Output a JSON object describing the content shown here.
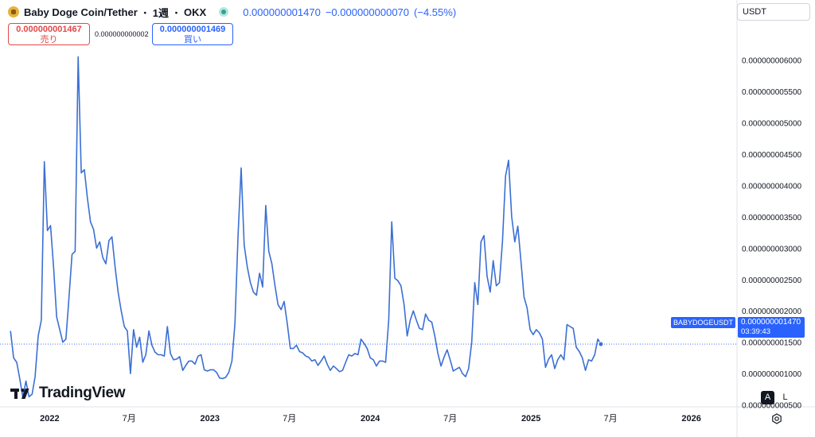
{
  "header": {
    "title": "Baby Doge Coin/Tether",
    "interval": "1週",
    "exchange": "OKX",
    "price": "0.000000001470",
    "change": "−0.000000000070",
    "change_pct": "(−4.55%)"
  },
  "trade": {
    "sell_price": "0.000000001467",
    "sell_label": "売り",
    "spread": "0.000000000002",
    "buy_price": "0.000000001469",
    "buy_label": "買い"
  },
  "currency_selector": "USDT",
  "price_label": {
    "symbol": "BABYDOGEUSDT",
    "price": "0.000000001470",
    "countdown": "03:39:43"
  },
  "logo_text": "TradingView",
  "controls": {
    "auto": "A",
    "log": "L"
  },
  "colors": {
    "line": "#3b6fd4",
    "accent": "#2962ff",
    "sell": "#e04848"
  },
  "icons": [
    "baby-doge-coin-icon",
    "live-status-icon",
    "tradingview-logo-icon",
    "settings-gear-icon"
  ],
  "chart_data": {
    "type": "line",
    "x_axis": "weekly dates (2021-09 to 2025-07)",
    "x_ticks": [
      {
        "label": "2022",
        "date": "2022-01-01"
      },
      {
        "label": "7月",
        "date": "2022-07-01"
      },
      {
        "label": "2023",
        "date": "2023-01-01"
      },
      {
        "label": "7月",
        "date": "2023-07-01"
      },
      {
        "label": "2024",
        "date": "2024-01-01"
      },
      {
        "label": "7月",
        "date": "2024-07-01"
      },
      {
        "label": "2025",
        "date": "2025-01-01"
      },
      {
        "label": "7月",
        "date": "2025-07-01"
      },
      {
        "label": "2026",
        "date": "2026-01-01"
      }
    ],
    "x_range": [
      "2021-09-10",
      "2026-04-15"
    ],
    "y_range": [
      4.7e-10,
      6.45e-09
    ],
    "y_ticks": [
      {
        "label": "0.000000000500",
        "value": 5e-10
      },
      {
        "label": "0.000000001000",
        "value": 1e-09
      },
      {
        "label": "0.000000001500",
        "value": 1.5e-09
      },
      {
        "label": "0.000000002000",
        "value": 2e-09
      },
      {
        "label": "0.000000002500",
        "value": 2.5e-09
      },
      {
        "label": "0.000000003000",
        "value": 3e-09
      },
      {
        "label": "0.000000003500",
        "value": 3.5e-09
      },
      {
        "label": "0.000000004000",
        "value": 4e-09
      },
      {
        "label": "0.000000004500",
        "value": 4.5e-09
      },
      {
        "label": "0.000000005000",
        "value": 5e-09
      },
      {
        "label": "0.000000005500",
        "value": 5.5e-09
      },
      {
        "label": "0.000000006000",
        "value": 6e-09
      }
    ],
    "last_price": 1.47e-09,
    "series": [
      {
        "points": [
          [
            "2021-10-04",
            1.68e-09
          ],
          [
            "2021-10-11",
            1.25e-09
          ],
          [
            "2021-10-18",
            1.18e-09
          ],
          [
            "2021-10-25",
            9.2e-10
          ],
          [
            "2021-11-01",
            6.2e-10
          ],
          [
            "2021-11-08",
            8.8e-10
          ],
          [
            "2021-11-15",
            6.3e-10
          ],
          [
            "2021-11-22",
            6.7e-10
          ],
          [
            "2021-11-29",
            9.5e-10
          ],
          [
            "2021-12-06",
            1.6e-09
          ],
          [
            "2021-12-13",
            1.85e-09
          ],
          [
            "2021-12-20",
            4.38e-09
          ],
          [
            "2021-12-27",
            3.28e-09
          ],
          [
            "2022-01-03",
            3.36e-09
          ],
          [
            "2022-01-10",
            2.7e-09
          ],
          [
            "2022-01-17",
            1.9e-09
          ],
          [
            "2022-01-24",
            1.7e-09
          ],
          [
            "2022-01-31",
            1.5e-09
          ],
          [
            "2022-02-07",
            1.55e-09
          ],
          [
            "2022-02-14",
            2.2e-09
          ],
          [
            "2022-02-21",
            2.9e-09
          ],
          [
            "2022-02-28",
            2.95e-09
          ],
          [
            "2022-03-07",
            6.05e-09
          ],
          [
            "2022-03-14",
            4.2e-09
          ],
          [
            "2022-03-21",
            4.25e-09
          ],
          [
            "2022-03-28",
            3.8e-09
          ],
          [
            "2022-04-04",
            3.42e-09
          ],
          [
            "2022-04-11",
            3.3e-09
          ],
          [
            "2022-04-18",
            3e-09
          ],
          [
            "2022-04-25",
            3.1e-09
          ],
          [
            "2022-05-02",
            2.85e-09
          ],
          [
            "2022-05-09",
            2.75e-09
          ],
          [
            "2022-05-16",
            3.12e-09
          ],
          [
            "2022-05-23",
            3.18e-09
          ],
          [
            "2022-05-30",
            2.7e-09
          ],
          [
            "2022-06-06",
            2.3e-09
          ],
          [
            "2022-06-13",
            2e-09
          ],
          [
            "2022-06-20",
            1.75e-09
          ],
          [
            "2022-06-27",
            1.68e-09
          ],
          [
            "2022-07-04",
            1e-09
          ],
          [
            "2022-07-11",
            1.7e-09
          ],
          [
            "2022-07-18",
            1.42e-09
          ],
          [
            "2022-07-25",
            1.58e-09
          ],
          [
            "2022-08-01",
            1.18e-09
          ],
          [
            "2022-08-08",
            1.3e-09
          ],
          [
            "2022-08-15",
            1.68e-09
          ],
          [
            "2022-08-22",
            1.45e-09
          ],
          [
            "2022-08-29",
            1.34e-09
          ],
          [
            "2022-09-05",
            1.3e-09
          ],
          [
            "2022-09-12",
            1.3e-09
          ],
          [
            "2022-09-19",
            1.28e-09
          ],
          [
            "2022-09-26",
            1.75e-09
          ],
          [
            "2022-10-03",
            1.32e-09
          ],
          [
            "2022-10-10",
            1.22e-09
          ],
          [
            "2022-10-17",
            1.23e-09
          ],
          [
            "2022-10-24",
            1.27e-09
          ],
          [
            "2022-10-31",
            1.05e-09
          ],
          [
            "2022-11-07",
            1.13e-09
          ],
          [
            "2022-11-14",
            1.2e-09
          ],
          [
            "2022-11-21",
            1.2e-09
          ],
          [
            "2022-11-28",
            1.15e-09
          ],
          [
            "2022-12-05",
            1.28e-09
          ],
          [
            "2022-12-12",
            1.3e-09
          ],
          [
            "2022-12-19",
            1.06e-09
          ],
          [
            "2022-12-26",
            1.04e-09
          ],
          [
            "2023-01-02",
            1.06e-09
          ],
          [
            "2023-01-09",
            1.06e-09
          ],
          [
            "2023-01-16",
            1.02e-09
          ],
          [
            "2023-01-23",
            9.3e-10
          ],
          [
            "2023-01-30",
            9.2e-10
          ],
          [
            "2023-02-06",
            9.4e-10
          ],
          [
            "2023-02-13",
            1.02e-09
          ],
          [
            "2023-02-20",
            1.2e-09
          ],
          [
            "2023-02-27",
            1.8e-09
          ],
          [
            "2023-03-06",
            3.2e-09
          ],
          [
            "2023-03-13",
            4.28e-09
          ],
          [
            "2023-03-20",
            3.05e-09
          ],
          [
            "2023-03-27",
            2.7e-09
          ],
          [
            "2023-04-03",
            2.45e-09
          ],
          [
            "2023-04-10",
            2.3e-09
          ],
          [
            "2023-04-17",
            2.25e-09
          ],
          [
            "2023-04-24",
            2.6e-09
          ],
          [
            "2023-05-01",
            2.38e-09
          ],
          [
            "2023-05-08",
            3.68e-09
          ],
          [
            "2023-05-15",
            2.95e-09
          ],
          [
            "2023-05-22",
            2.75e-09
          ],
          [
            "2023-05-29",
            2.4e-09
          ],
          [
            "2023-06-05",
            2.1e-09
          ],
          [
            "2023-06-12",
            2.02e-09
          ],
          [
            "2023-06-19",
            2.15e-09
          ],
          [
            "2023-06-26",
            1.8e-09
          ],
          [
            "2023-07-03",
            1.4e-09
          ],
          [
            "2023-07-10",
            1.4e-09
          ],
          [
            "2023-07-17",
            1.45e-09
          ],
          [
            "2023-07-24",
            1.35e-09
          ],
          [
            "2023-07-31",
            1.33e-09
          ],
          [
            "2023-08-07",
            1.28e-09
          ],
          [
            "2023-08-14",
            1.26e-09
          ],
          [
            "2023-08-21",
            1.2e-09
          ],
          [
            "2023-08-28",
            1.22e-09
          ],
          [
            "2023-09-04",
            1.13e-09
          ],
          [
            "2023-09-11",
            1.2e-09
          ],
          [
            "2023-09-18",
            1.28e-09
          ],
          [
            "2023-09-25",
            1.15e-09
          ],
          [
            "2023-10-02",
            1.05e-09
          ],
          [
            "2023-10-09",
            1.12e-09
          ],
          [
            "2023-10-16",
            1.08e-09
          ],
          [
            "2023-10-23",
            1.03e-09
          ],
          [
            "2023-10-30",
            1.05e-09
          ],
          [
            "2023-11-06",
            1.18e-09
          ],
          [
            "2023-11-13",
            1.3e-09
          ],
          [
            "2023-11-20",
            1.28e-09
          ],
          [
            "2023-11-27",
            1.32e-09
          ],
          [
            "2023-12-04",
            1.3e-09
          ],
          [
            "2023-12-11",
            1.55e-09
          ],
          [
            "2023-12-18",
            1.48e-09
          ],
          [
            "2023-12-25",
            1.4e-09
          ],
          [
            "2024-01-01",
            1.25e-09
          ],
          [
            "2024-01-08",
            1.22e-09
          ],
          [
            "2024-01-15",
            1.12e-09
          ],
          [
            "2024-01-22",
            1.2e-09
          ],
          [
            "2024-01-29",
            1.2e-09
          ],
          [
            "2024-02-05",
            1.18e-09
          ],
          [
            "2024-02-12",
            1.85e-09
          ],
          [
            "2024-02-19",
            3.42e-09
          ],
          [
            "2024-02-26",
            2.52e-09
          ],
          [
            "2024-03-04",
            2.48e-09
          ],
          [
            "2024-03-11",
            2.4e-09
          ],
          [
            "2024-03-18",
            2.1e-09
          ],
          [
            "2024-03-25",
            1.6e-09
          ],
          [
            "2024-04-01",
            1.85e-09
          ],
          [
            "2024-04-08",
            2e-09
          ],
          [
            "2024-04-15",
            1.85e-09
          ],
          [
            "2024-04-22",
            1.72e-09
          ],
          [
            "2024-04-29",
            1.7e-09
          ],
          [
            "2024-05-06",
            1.95e-09
          ],
          [
            "2024-05-13",
            1.85e-09
          ],
          [
            "2024-05-20",
            1.82e-09
          ],
          [
            "2024-05-27",
            1.6e-09
          ],
          [
            "2024-06-03",
            1.32e-09
          ],
          [
            "2024-06-10",
            1.12e-09
          ],
          [
            "2024-06-17",
            1.26e-09
          ],
          [
            "2024-06-24",
            1.38e-09
          ],
          [
            "2024-07-01",
            1.22e-09
          ],
          [
            "2024-07-08",
            1.04e-09
          ],
          [
            "2024-07-15",
            1.07e-09
          ],
          [
            "2024-07-22",
            1.1e-09
          ],
          [
            "2024-07-29",
            1e-09
          ],
          [
            "2024-08-05",
            9.5e-10
          ],
          [
            "2024-08-12",
            1.08e-09
          ],
          [
            "2024-08-19",
            1.5e-09
          ],
          [
            "2024-08-26",
            2.45e-09
          ],
          [
            "2024-09-02",
            2.1e-09
          ],
          [
            "2024-09-09",
            3.1e-09
          ],
          [
            "2024-09-16",
            3.2e-09
          ],
          [
            "2024-09-23",
            2.55e-09
          ],
          [
            "2024-09-30",
            2.3e-09
          ],
          [
            "2024-10-07",
            2.8e-09
          ],
          [
            "2024-10-14",
            2.4e-09
          ],
          [
            "2024-10-21",
            2.45e-09
          ],
          [
            "2024-10-28",
            3.1e-09
          ],
          [
            "2024-11-04",
            4.15e-09
          ],
          [
            "2024-11-11",
            4.4e-09
          ],
          [
            "2024-11-18",
            3.5e-09
          ],
          [
            "2024-11-25",
            3.1e-09
          ],
          [
            "2024-12-02",
            3.35e-09
          ],
          [
            "2024-12-09",
            2.8e-09
          ],
          [
            "2024-12-16",
            2.22e-09
          ],
          [
            "2024-12-23",
            2.05e-09
          ],
          [
            "2024-12-30",
            1.7e-09
          ],
          [
            "2025-01-06",
            1.62e-09
          ],
          [
            "2025-01-13",
            1.7e-09
          ],
          [
            "2025-01-20",
            1.65e-09
          ],
          [
            "2025-01-27",
            1.55e-09
          ],
          [
            "2025-02-03",
            1.1e-09
          ],
          [
            "2025-02-10",
            1.23e-09
          ],
          [
            "2025-02-17",
            1.3e-09
          ],
          [
            "2025-02-24",
            1.08e-09
          ],
          [
            "2025-03-03",
            1.22e-09
          ],
          [
            "2025-03-10",
            1.3e-09
          ],
          [
            "2025-03-17",
            1.22e-09
          ],
          [
            "2025-03-24",
            1.78e-09
          ],
          [
            "2025-03-31",
            1.75e-09
          ],
          [
            "2025-04-07",
            1.72e-09
          ],
          [
            "2025-04-14",
            1.42e-09
          ],
          [
            "2025-04-21",
            1.35e-09
          ],
          [
            "2025-04-28",
            1.25e-09
          ],
          [
            "2025-05-05",
            1.05e-09
          ],
          [
            "2025-05-12",
            1.22e-09
          ],
          [
            "2025-05-19",
            1.2e-09
          ],
          [
            "2025-05-26",
            1.3e-09
          ],
          [
            "2025-06-02",
            1.55e-09
          ],
          [
            "2025-06-09",
            1.47e-09
          ]
        ]
      }
    ]
  }
}
